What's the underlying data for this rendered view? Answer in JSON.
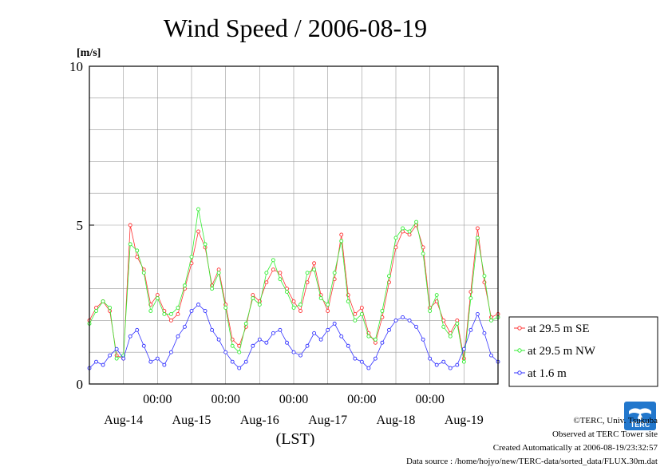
{
  "colors": {
    "se": "#ff3333",
    "nw": "#33ee33",
    "low": "#3333ff",
    "line": "#a06020",
    "grid": "#999999"
  },
  "credits": {
    "line1": "©TERC, Univ. Tsukuba",
    "line2": "Observed at TERC Tower site",
    "line3": "Created Automatically at 2006-08-19/23:32:57",
    "line4": "Data source : /home/hojyo/new/TERC-data/sorted_data/FLUX.30m.dat"
  },
  "logo": {
    "text": "TERC"
  },
  "chart_data": {
    "type": "line",
    "title": "Wind Speed / 2006-08-19",
    "ylabel": "[m/s]",
    "xlabel": "(LST)",
    "ylim": [
      0,
      10
    ],
    "y_ticks": [
      "0",
      "5",
      "10"
    ],
    "x_unit": "days since 2006-08-13 00:00 LST (plot spans 6 days)",
    "xlim": [
      0,
      6
    ],
    "x_ticks": [
      {
        "x": 1,
        "time": "00:00",
        "date": "Aug-14"
      },
      {
        "x": 2,
        "time": "00:00",
        "date": "Aug-15"
      },
      {
        "x": 3,
        "time": "00:00",
        "date": "Aug-16"
      },
      {
        "x": 4,
        "time": "00:00",
        "date": "Aug-17"
      },
      {
        "x": 5,
        "time": "00:00",
        "date": "Aug-18"
      },
      {
        "x": "",
        "time": "",
        "date": "Aug-19"
      }
    ],
    "grid": true,
    "legend_position": "bottom-right outside",
    "series": [
      {
        "name": "at 29.5 m SE",
        "color": "#ff3333",
        "x": [
          0,
          0.1,
          0.2,
          0.3,
          0.4,
          0.5,
          0.6,
          0.7,
          0.8,
          0.9,
          1.0,
          1.1,
          1.2,
          1.3,
          1.4,
          1.5,
          1.6,
          1.7,
          1.8,
          1.9,
          2.0,
          2.1,
          2.2,
          2.3,
          2.4,
          2.5,
          2.6,
          2.7,
          2.8,
          2.9,
          3.0,
          3.1,
          3.2,
          3.3,
          3.4,
          3.5,
          3.6,
          3.7,
          3.8,
          3.9,
          4.0,
          4.1,
          4.2,
          4.3,
          4.4,
          4.5,
          4.6,
          4.7,
          4.8,
          4.9,
          5.0,
          5.1,
          5.2,
          5.3,
          5.4,
          5.5,
          5.6,
          5.7,
          5.8,
          5.9,
          6.0
        ],
        "values": [
          2.0,
          2.4,
          2.6,
          2.3,
          0.9,
          0.8,
          5.0,
          4.0,
          3.6,
          2.5,
          2.8,
          2.3,
          2.0,
          2.2,
          3.0,
          3.8,
          4.8,
          4.3,
          3.1,
          3.6,
          2.5,
          1.4,
          1.2,
          1.8,
          2.8,
          2.6,
          3.2,
          3.6,
          3.5,
          3.0,
          2.6,
          2.3,
          3.2,
          3.8,
          2.8,
          2.3,
          3.3,
          4.7,
          2.8,
          2.2,
          2.4,
          1.6,
          1.3,
          2.1,
          3.2,
          4.3,
          4.8,
          4.7,
          5.0,
          4.3,
          2.4,
          2.6,
          2.0,
          1.6,
          2.0,
          0.8,
          2.9,
          4.9,
          3.2,
          2.1,
          2.2
        ]
      },
      {
        "name": "at 29.5 m NW",
        "color": "#33ee33",
        "x": [
          0,
          0.1,
          0.2,
          0.3,
          0.4,
          0.5,
          0.6,
          0.7,
          0.8,
          0.9,
          1.0,
          1.1,
          1.2,
          1.3,
          1.4,
          1.5,
          1.6,
          1.7,
          1.8,
          1.9,
          2.0,
          2.1,
          2.2,
          2.3,
          2.4,
          2.5,
          2.6,
          2.7,
          2.8,
          2.9,
          3.0,
          3.1,
          3.2,
          3.3,
          3.4,
          3.5,
          3.6,
          3.7,
          3.8,
          3.9,
          4.0,
          4.1,
          4.2,
          4.3,
          4.4,
          4.5,
          4.6,
          4.7,
          4.8,
          4.9,
          5.0,
          5.1,
          5.2,
          5.3,
          5.4,
          5.5,
          5.6,
          5.7,
          5.8,
          5.9,
          6.0
        ],
        "values": [
          1.9,
          2.3,
          2.6,
          2.4,
          0.8,
          0.9,
          4.4,
          4.2,
          3.5,
          2.3,
          2.7,
          2.2,
          2.2,
          2.4,
          3.1,
          4.0,
          5.5,
          4.4,
          3.0,
          3.5,
          2.4,
          1.2,
          1.0,
          1.9,
          2.7,
          2.5,
          3.5,
          3.9,
          3.3,
          2.9,
          2.4,
          2.5,
          3.5,
          3.6,
          2.7,
          2.5,
          3.5,
          4.5,
          2.6,
          2.0,
          2.2,
          1.5,
          1.4,
          2.3,
          3.4,
          4.6,
          4.9,
          4.8,
          5.1,
          4.1,
          2.3,
          2.8,
          1.8,
          1.5,
          1.9,
          0.7,
          2.7,
          4.6,
          3.4,
          2.0,
          2.1
        ]
      },
      {
        "name": "at 1.6 m",
        "color": "#3333ff",
        "x": [
          0,
          0.1,
          0.2,
          0.3,
          0.4,
          0.5,
          0.6,
          0.7,
          0.8,
          0.9,
          1.0,
          1.1,
          1.2,
          1.3,
          1.4,
          1.5,
          1.6,
          1.7,
          1.8,
          1.9,
          2.0,
          2.1,
          2.2,
          2.3,
          2.4,
          2.5,
          2.6,
          2.7,
          2.8,
          2.9,
          3.0,
          3.1,
          3.2,
          3.3,
          3.4,
          3.5,
          3.6,
          3.7,
          3.8,
          3.9,
          4.0,
          4.1,
          4.2,
          4.3,
          4.4,
          4.5,
          4.6,
          4.7,
          4.8,
          4.9,
          5.0,
          5.1,
          5.2,
          5.3,
          5.4,
          5.5,
          5.6,
          5.7,
          5.8,
          5.9,
          6.0
        ],
        "values": [
          0.5,
          0.7,
          0.6,
          0.9,
          1.1,
          0.8,
          1.5,
          1.7,
          1.2,
          0.7,
          0.8,
          0.6,
          1.0,
          1.5,
          1.8,
          2.3,
          2.5,
          2.3,
          1.7,
          1.4,
          1.0,
          0.7,
          0.5,
          0.7,
          1.2,
          1.4,
          1.3,
          1.6,
          1.7,
          1.3,
          1.0,
          0.9,
          1.2,
          1.6,
          1.4,
          1.7,
          1.9,
          1.5,
          1.2,
          0.8,
          0.7,
          0.5,
          0.8,
          1.3,
          1.7,
          2.0,
          2.1,
          2.0,
          1.8,
          1.4,
          0.8,
          0.6,
          0.7,
          0.5,
          0.6,
          1.1,
          1.7,
          2.2,
          1.6,
          0.9,
          0.7
        ]
      }
    ]
  }
}
